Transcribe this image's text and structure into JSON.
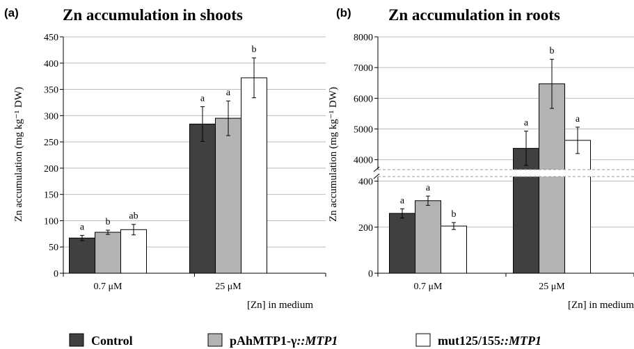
{
  "panels": [
    {
      "letter": "(a)",
      "title": "Zn accumulation in shoots",
      "ylabel": "Zn accumulation (mg kg⁻¹ DW)",
      "xlabel": "[Zn] in medium"
    },
    {
      "letter": "(b)",
      "title": "Zn accumulation in roots",
      "ylabel": "Zn accumulation (mg kg⁻¹ DW)",
      "xlabel": "[Zn] in medium"
    }
  ],
  "legend": [
    {
      "name": "Control",
      "plain": "Control",
      "italic": "",
      "color": "#404040"
    },
    {
      "name": "pAhMTP1-γ::MTP1",
      "plain": "pAhMTP1-γ",
      "italic": "::MTP1",
      "color": "#b3b3b3"
    },
    {
      "name": "mut125/155::MTP1",
      "plain": "mut125/155",
      "italic": "::MTP1",
      "color": "#ffffff"
    }
  ],
  "chart_data": [
    {
      "type": "bar",
      "title": "Zn accumulation in shoots",
      "ylabel": "Zn accumulation (mg kg⁻¹ DW)",
      "xlabel": "[Zn] in medium",
      "categories": [
        "0.7 μM",
        "25 μM"
      ],
      "ylim": [
        0,
        450
      ],
      "yticks": [
        0,
        50,
        100,
        150,
        200,
        250,
        300,
        350,
        400,
        450
      ],
      "grid": true,
      "series": [
        {
          "name": "Control",
          "values": [
            67,
            284
          ],
          "errors": [
            5,
            33
          ],
          "labels": [
            "a",
            "a"
          ]
        },
        {
          "name": "pAhMTP1-γ::MTP1",
          "values": [
            78,
            295
          ],
          "errors": [
            4,
            33
          ],
          "labels": [
            "b",
            "a"
          ]
        },
        {
          "name": "mut125/155::MTP1",
          "values": [
            83,
            372
          ],
          "errors": [
            10,
            38
          ],
          "labels": [
            "ab",
            "b"
          ]
        }
      ]
    },
    {
      "type": "bar",
      "title": "Zn accumulation in roots",
      "ylabel": "Zn accumulation (mg kg⁻¹ DW)",
      "xlabel": "[Zn] in medium",
      "categories": [
        "0.7 μM",
        "25 μM"
      ],
      "ylim": [
        0,
        8000
      ],
      "axis_break": [
        450,
        3450
      ],
      "yticks": [
        0,
        200,
        400,
        4000,
        5000,
        6000,
        7000,
        8000
      ],
      "grid": true,
      "series": [
        {
          "name": "Control",
          "values": [
            260,
            4370
          ],
          "errors": [
            20,
            560
          ],
          "labels": [
            "a",
            "a"
          ]
        },
        {
          "name": "pAhMTP1-γ::MTP1",
          "values": [
            315,
            6470
          ],
          "errors": [
            20,
            800
          ],
          "labels": [
            "a",
            "b"
          ]
        },
        {
          "name": "mut125/155::MTP1",
          "values": [
            205,
            4630
          ],
          "errors": [
            15,
            430
          ],
          "labels": [
            "b",
            "a"
          ]
        }
      ]
    }
  ]
}
